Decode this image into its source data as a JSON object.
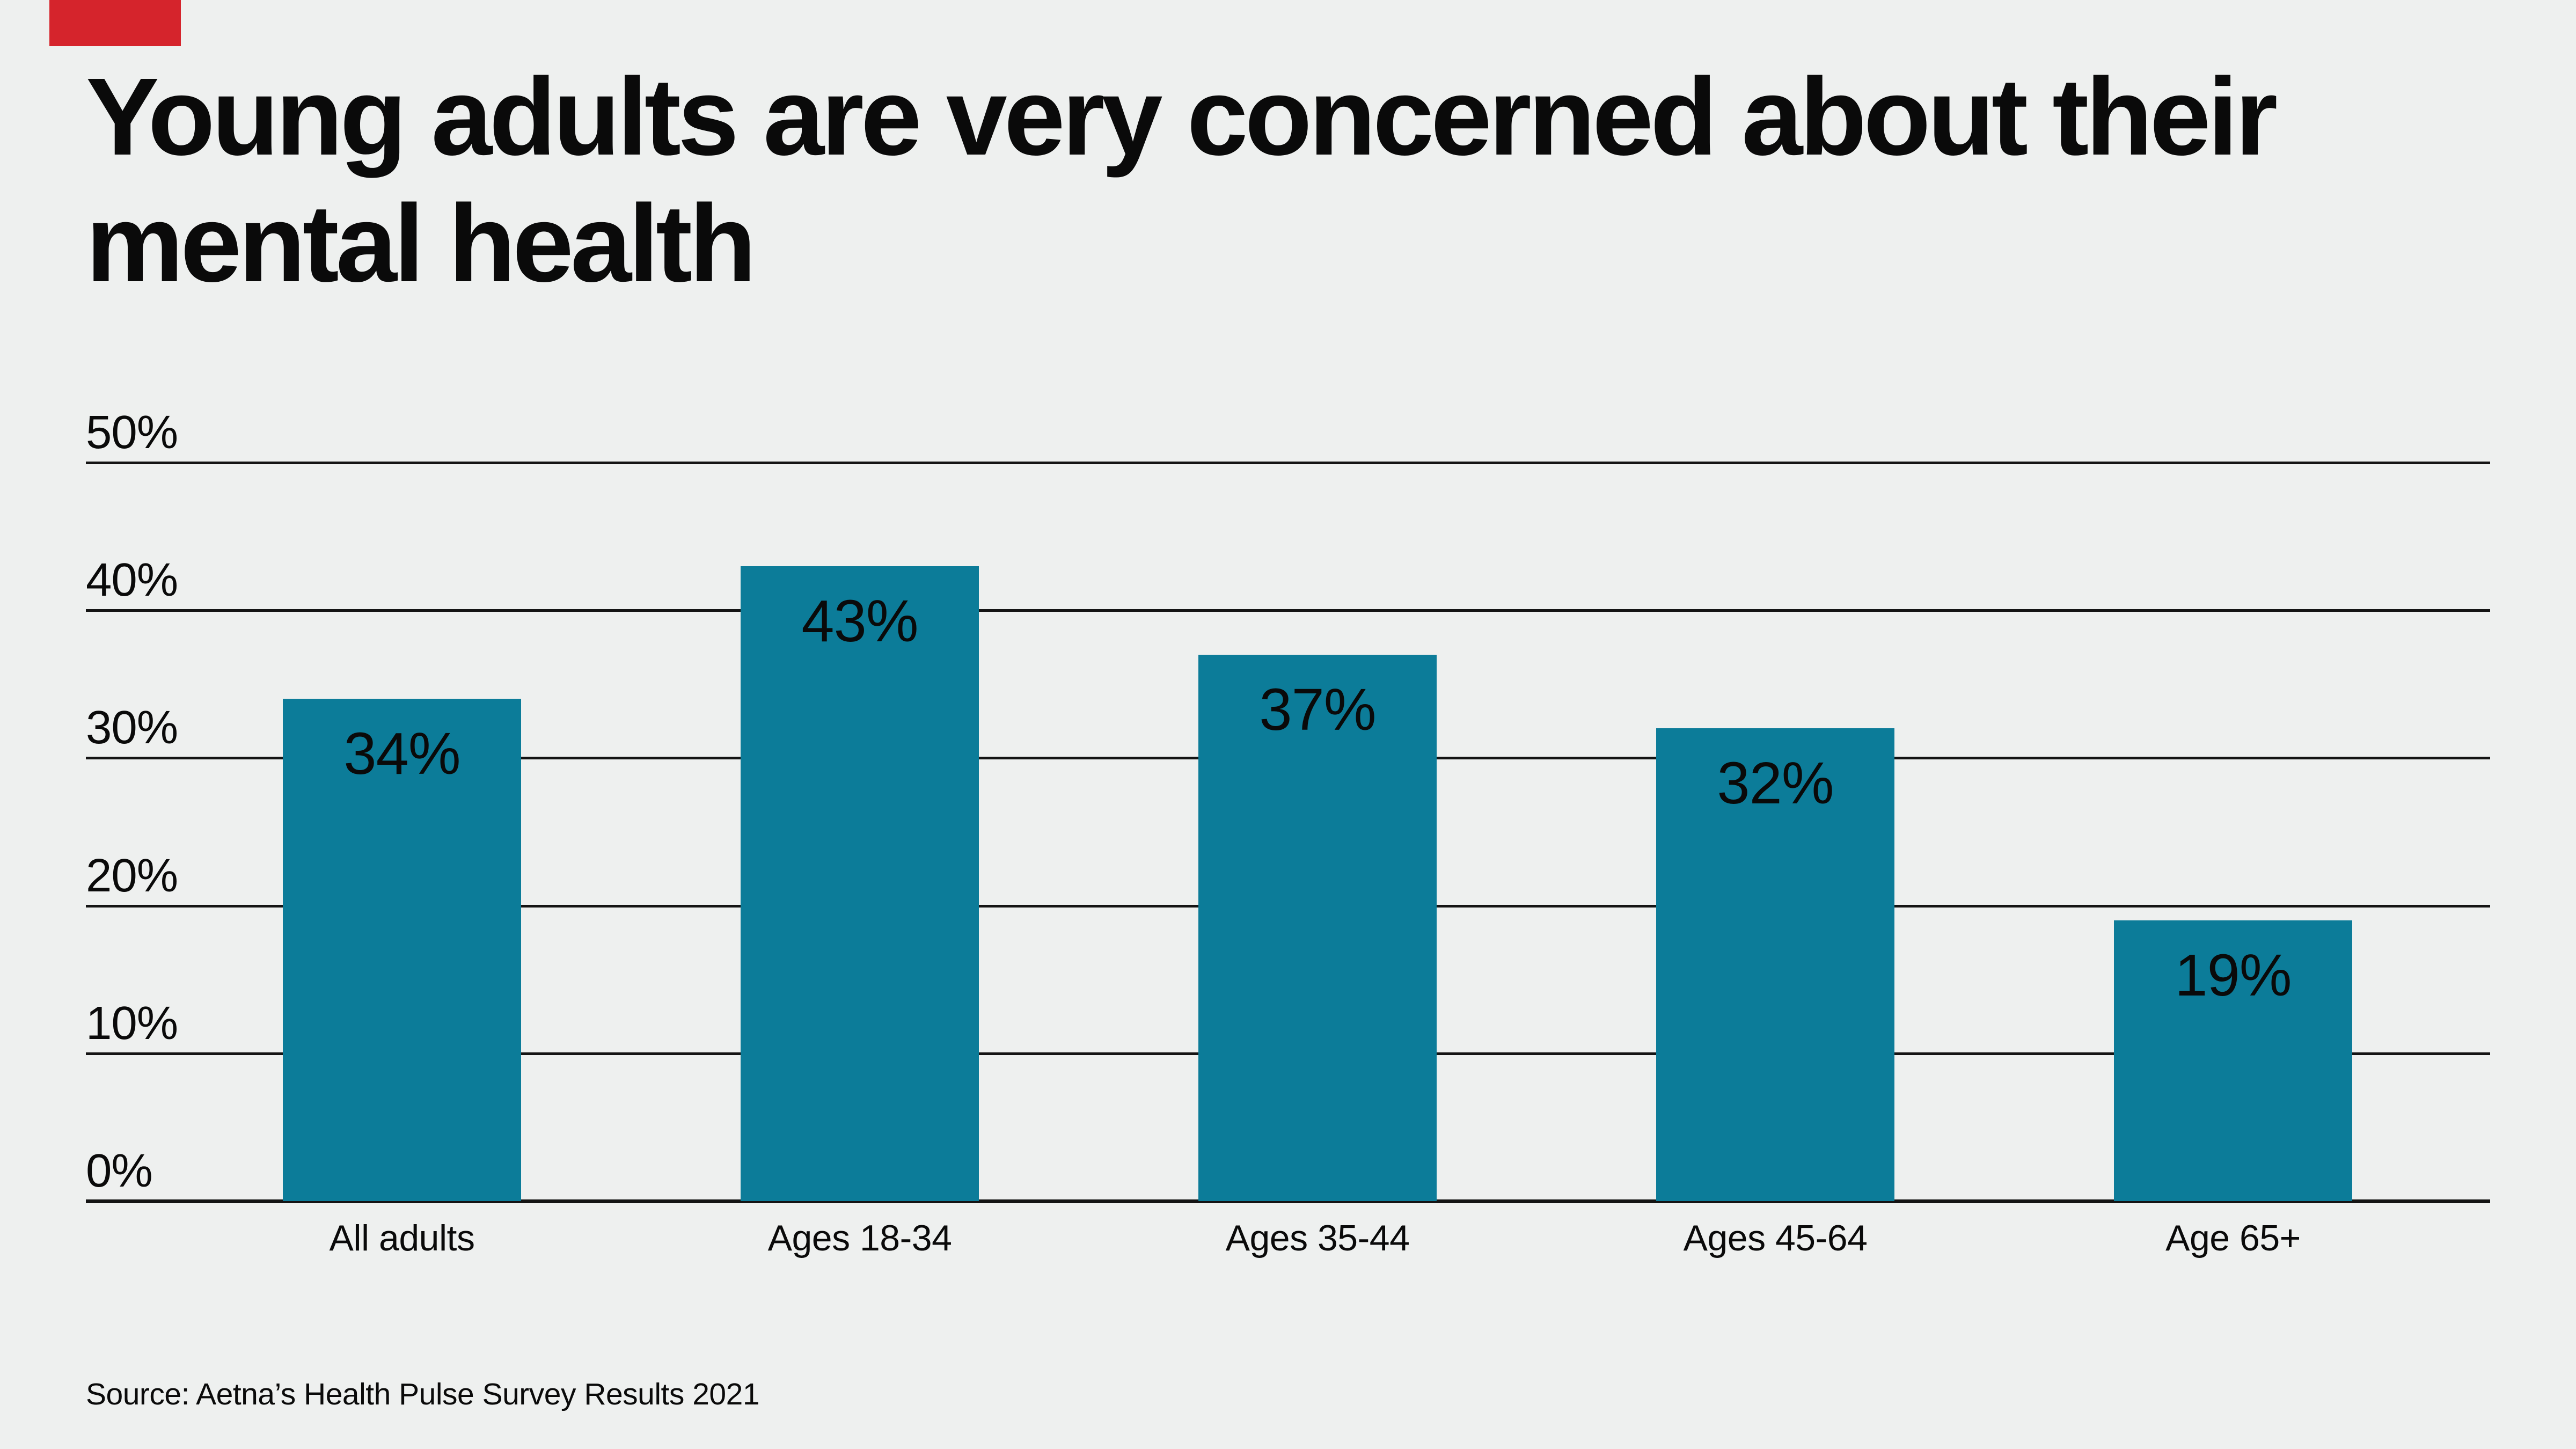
{
  "annotation_marker": {
    "color": "#d5242c"
  },
  "title": {
    "line1": "Young adults are very concerned about their",
    "line2": "mental health"
  },
  "chart_data": {
    "type": "bar",
    "title": "Young adults are very concerned about their mental health",
    "categories": [
      "All adults",
      "Ages 18-34",
      "Ages 35-44",
      "Ages 45-64",
      "Age 65+"
    ],
    "values": [
      34,
      43,
      37,
      32,
      19
    ],
    "value_labels": [
      "34%",
      "43%",
      "37%",
      "32%",
      "19%"
    ],
    "xlabel": "",
    "ylabel": "",
    "ylim": [
      0,
      50
    ],
    "ytick_values": [
      0,
      10,
      20,
      30,
      40,
      50
    ],
    "ytick_labels": [
      "0%",
      "10%",
      "20%",
      "30%",
      "40%",
      "50%"
    ],
    "grid": true,
    "legend": "none",
    "bar_color": "#0c7c99",
    "background_color": "#eef0ef",
    "gridline_color": "#141414",
    "text_color": "#0a0a0a"
  },
  "source": {
    "text": "Source: Aetna’s Health Pulse Survey Results 2021"
  }
}
